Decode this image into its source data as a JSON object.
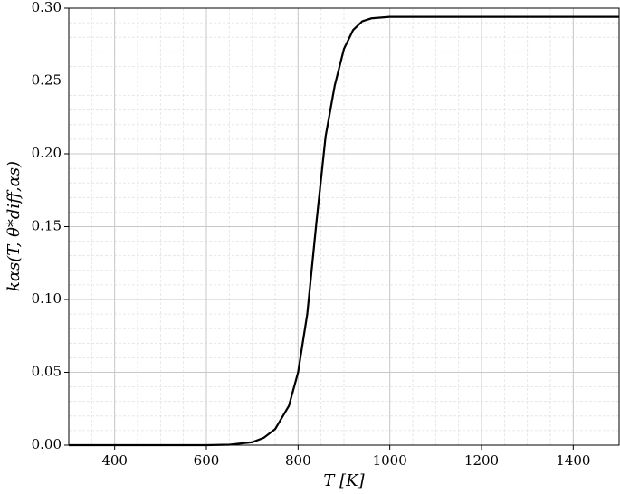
{
  "chart_data": {
    "type": "line",
    "x_label": "T [K]",
    "y_label": "kαs(T, θ*diff,αs)",
    "x": [
      300,
      400,
      500,
      600,
      650,
      700,
      725,
      750,
      780,
      800,
      820,
      840,
      860,
      880,
      900,
      920,
      940,
      960,
      1000,
      1050,
      1200,
      1500
    ],
    "series": [
      {
        "color": "#000000",
        "values": [
          0,
          0,
          0,
          0,
          0.0003,
          0.002,
          0.005,
          0.011,
          0.027,
          0.05,
          0.09,
          0.153,
          0.212,
          0.247,
          0.272,
          0.285,
          0.291,
          0.293,
          0.294,
          0.294,
          0.294,
          0.294
        ]
      }
    ],
    "xlim": [
      300,
      1500
    ],
    "ylim": [
      0,
      0.3
    ],
    "xticks": [
      400,
      600,
      800,
      1000,
      1200,
      1400
    ],
    "yticks": [
      {
        "value": 0,
        "label": "0.00"
      },
      {
        "value": 0.05,
        "label": "0.05"
      },
      {
        "value": 0.1,
        "label": "0.10"
      },
      {
        "value": 0.15,
        "label": "0.15"
      },
      {
        "value": 0.2,
        "label": "0.20"
      },
      {
        "value": 0.25,
        "label": "0.25"
      },
      {
        "value": 0.3,
        "label": "0.30"
      }
    ],
    "grid": true,
    "minor_grid": true
  }
}
